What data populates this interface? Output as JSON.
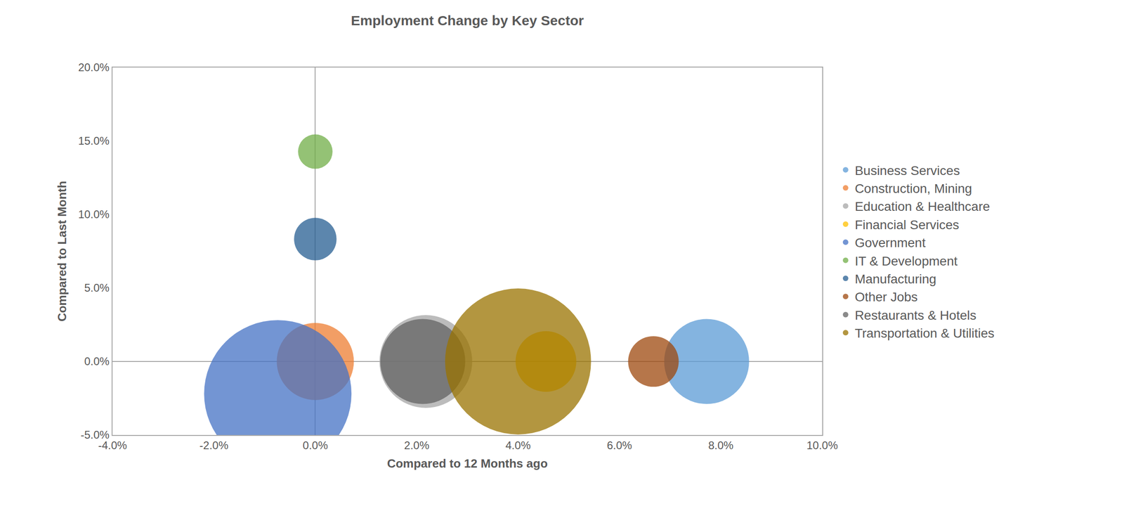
{
  "chart_data": {
    "type": "bubble",
    "title": "Employment Change by Key Sector",
    "x_label": "Compared to 12 Months ago",
    "y_label": "Compared to Last Month",
    "xlim": [
      -4,
      10
    ],
    "xticks": [
      {
        "value": -4,
        "label": "-4.0%"
      },
      {
        "value": -2,
        "label": "-2.0%"
      },
      {
        "value": 0,
        "label": "0.0%"
      },
      {
        "value": 2,
        "label": "2.0%"
      },
      {
        "value": 4,
        "label": "4.0%"
      },
      {
        "value": 6,
        "label": "6.0%"
      },
      {
        "value": 8,
        "label": "8.0%"
      },
      {
        "value": 10,
        "label": "10.0%"
      }
    ],
    "ylim": [
      -5,
      20
    ],
    "yticks": [
      {
        "value": -5,
        "label": "-5.0%"
      },
      {
        "value": 0,
        "label": "0.0%"
      },
      {
        "value": 5,
        "label": "5.0%"
      },
      {
        "value": 10,
        "label": "10.0%"
      },
      {
        "value": 15,
        "label": "15.0%"
      },
      {
        "value": 20,
        "label": "20.0%"
      }
    ],
    "grid": false,
    "legend": "right",
    "series": [
      {
        "name": "Business Services",
        "color": "#5b9bd5",
        "x": [
          7.72
        ],
        "values": [
          0
        ],
        "size": [
          1760
        ]
      },
      {
        "name": "Construction, Mining",
        "color": "#ed7d31",
        "x": [
          0
        ],
        "values": [
          0
        ],
        "size": [
          1450
        ]
      },
      {
        "name": "Education & Healthcare",
        "color": "#a5a5a5",
        "x": [
          2.18
        ],
        "values": [
          0
        ],
        "size": [
          2100
        ]
      },
      {
        "name": "Financial Services",
        "color": "#ffc000",
        "x": [
          4.55
        ],
        "values": [
          0
        ],
        "size": [
          900
        ]
      },
      {
        "name": "Government",
        "color": "#4472c4",
        "x": [
          -0.74
        ],
        "values": [
          -2.2
        ],
        "size": [
          5300
        ]
      },
      {
        "name": "IT & Development",
        "color": "#70ad47",
        "x": [
          0
        ],
        "values": [
          14.28
        ],
        "size": [
          290
        ]
      },
      {
        "name": "Manufacturing",
        "color": "#255e91",
        "x": [
          0
        ],
        "values": [
          8.33
        ],
        "size": [
          440
        ]
      },
      {
        "name": "Other Jobs",
        "color": "#9e480e",
        "x": [
          6.67
        ],
        "values": [
          0
        ],
        "size": [
          625
        ]
      },
      {
        "name": "Restaurants & Hotels",
        "color": "#636363",
        "x": [
          2.12
        ],
        "values": [
          0
        ],
        "size": [
          1760
        ]
      },
      {
        "name": "Transportation & Utilities",
        "color": "#997300",
        "x": [
          4.0
        ],
        "values": [
          0
        ],
        "size": [
          5200
        ]
      }
    ]
  }
}
